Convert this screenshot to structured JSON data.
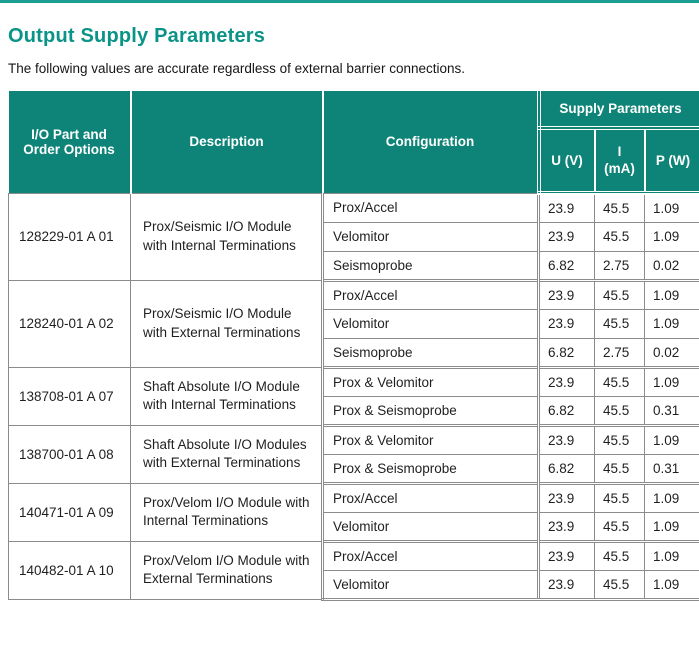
{
  "theme": {
    "accent": "#0A9387",
    "header_bg": "#0E8478",
    "top_bar": "#1D9E93",
    "border": "#8C8C8C",
    "text": "#1F1F1F"
  },
  "page": {
    "title": "Output Supply Parameters",
    "subtitle": "The following values are accurate regardless of external barrier connections."
  },
  "table": {
    "columns": {
      "part": "I/O Part and Order Options",
      "description": "Description",
      "configuration": "Configuration"
    },
    "supply": {
      "title": "Supply Parameters",
      "u": "U (V)",
      "i": "I\n(mA)",
      "p": "P (W)"
    },
    "groups": [
      {
        "part": "128229-01 A 01",
        "description": "Prox/Seismic I/O Module with Internal Terminations",
        "rows": [
          {
            "config": "Prox/Accel",
            "u": "23.9",
            "i": "45.5",
            "p": "1.09"
          },
          {
            "config": "Velomitor",
            "u": "23.9",
            "i": "45.5",
            "p": "1.09"
          },
          {
            "config": "Seismoprobe",
            "u": "6.82",
            "i": "2.75",
            "p": "0.02"
          }
        ]
      },
      {
        "part": "128240-01 A 02",
        "description": "Prox/Seismic I/O Module with External Terminations",
        "rows": [
          {
            "config": "Prox/Accel",
            "u": "23.9",
            "i": "45.5",
            "p": "1.09"
          },
          {
            "config": "Velomitor",
            "u": "23.9",
            "i": "45.5",
            "p": "1.09"
          },
          {
            "config": "Seismoprobe",
            "u": "6.82",
            "i": "2.75",
            "p": "0.02"
          }
        ]
      },
      {
        "part": "138708-01 A 07",
        "description": "Shaft Absolute I/O Module with Internal Terminations",
        "rows": [
          {
            "config": "Prox & Velomitor",
            "u": "23.9",
            "i": "45.5",
            "p": "1.09"
          },
          {
            "config": "Prox & Seismoprobe",
            "u": "6.82",
            "i": "45.5",
            "p": "0.31"
          }
        ]
      },
      {
        "part": "138700-01 A 08",
        "description": "Shaft Absolute I/O Modules with External Terminations",
        "rows": [
          {
            "config": "Prox & Velomitor",
            "u": "23.9",
            "i": "45.5",
            "p": "1.09"
          },
          {
            "config": "Prox & Seismoprobe",
            "u": "6.82",
            "i": "45.5",
            "p": "0.31"
          }
        ]
      },
      {
        "part": "140471-01 A 09",
        "description": "Prox/Velom I/O Module with Internal Terminations",
        "rows": [
          {
            "config": "Prox/Accel",
            "u": "23.9",
            "i": "45.5",
            "p": "1.09"
          },
          {
            "config": "Velomitor",
            "u": "23.9",
            "i": "45.5",
            "p": "1.09"
          }
        ]
      },
      {
        "part": "140482-01 A 10",
        "description": "Prox/Velom I/O Module with External Terminations",
        "rows": [
          {
            "config": "Prox/Accel",
            "u": "23.9",
            "i": "45.5",
            "p": "1.09"
          },
          {
            "config": "Velomitor",
            "u": "23.9",
            "i": "45.5",
            "p": "1.09"
          }
        ]
      }
    ]
  }
}
